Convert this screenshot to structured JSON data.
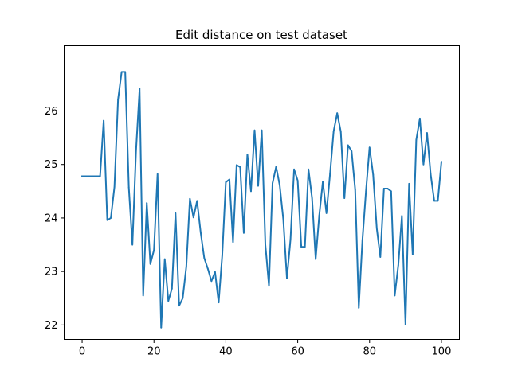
{
  "chart_data": {
    "type": "line",
    "title": "Edit distance on test dataset",
    "xlabel": "",
    "ylabel": "",
    "xlim": [
      -5,
      105
    ],
    "ylim": [
      21.73,
      27.22
    ],
    "xticks": [
      0,
      20,
      40,
      60,
      80,
      100
    ],
    "yticks": [
      22,
      23,
      24,
      25,
      26
    ],
    "grid": false,
    "legend": "none",
    "series": [
      {
        "color": "#1f77b4",
        "x": [
          0,
          1,
          2,
          3,
          4,
          5,
          6,
          7,
          8,
          9,
          10,
          11,
          12,
          13,
          14,
          15,
          16,
          17,
          18,
          19,
          20,
          21,
          22,
          23,
          24,
          25,
          26,
          27,
          28,
          29,
          30,
          31,
          32,
          33,
          34,
          35,
          36,
          37,
          38,
          39,
          40,
          41,
          42,
          43,
          44,
          45,
          46,
          47,
          48,
          49,
          50,
          51,
          52,
          53,
          54,
          55,
          56,
          57,
          58,
          59,
          60,
          61,
          62,
          63,
          64,
          65,
          66,
          67,
          68,
          69,
          70,
          71,
          72,
          73,
          74,
          75,
          76,
          77,
          78,
          79,
          80,
          81,
          82,
          83,
          84,
          85,
          86,
          87,
          88,
          89,
          90,
          91,
          92,
          93,
          94,
          95,
          96,
          97,
          98,
          99,
          100
        ],
        "y": [
          24.78,
          24.78,
          24.78,
          24.78,
          24.78,
          24.78,
          25.82,
          23.96,
          24.0,
          24.58,
          26.21,
          26.73,
          26.73,
          24.57,
          23.5,
          25.25,
          26.42,
          22.55,
          24.28,
          23.14,
          23.4,
          24.82,
          21.95,
          23.23,
          22.45,
          22.68,
          24.09,
          22.36,
          22.5,
          23.09,
          24.36,
          24.01,
          24.32,
          23.73,
          23.25,
          23.05,
          22.82,
          22.99,
          22.42,
          23.3,
          24.67,
          24.72,
          23.55,
          24.99,
          24.95,
          23.72,
          25.19,
          24.5,
          25.64,
          24.6,
          25.64,
          23.5,
          22.73,
          24.65,
          24.96,
          24.61,
          23.97,
          22.87,
          23.6,
          24.91,
          24.7,
          23.46,
          23.46,
          24.91,
          24.37,
          23.23,
          24.05,
          24.68,
          24.09,
          24.82,
          25.62,
          25.96,
          25.61,
          24.37,
          25.36,
          25.25,
          24.53,
          22.32,
          23.57,
          24.5,
          25.32,
          24.81,
          23.81,
          23.27,
          24.55,
          24.55,
          24.5,
          22.55,
          23.12,
          24.04,
          22.01,
          24.64,
          23.32,
          25.46,
          25.86,
          25.0,
          25.59,
          24.82,
          24.32,
          24.32,
          25.05
        ]
      }
    ]
  }
}
